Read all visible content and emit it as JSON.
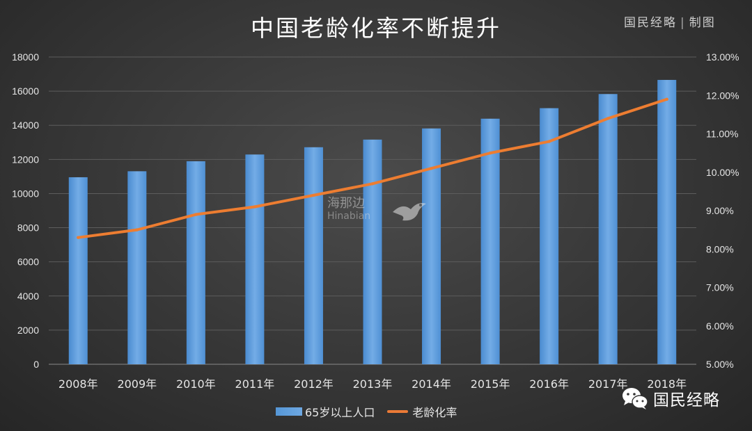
{
  "header": {
    "title": "中国老龄化率不断提升",
    "credit_name": "国民经略",
    "credit_sep": "|",
    "credit_suffix": "制图"
  },
  "watermark": {
    "cn": "海那边",
    "en": "Hinabian"
  },
  "brand": {
    "label": "国民经略",
    "icon": "wechat-icon"
  },
  "colors": {
    "bar": "#5b9bd5",
    "line": "#ed7d31",
    "background": "#3a3a3a",
    "text": "#e6e6e6"
  },
  "chart_data": {
    "type": "bar",
    "title": "中国老龄化率不断提升",
    "categories": [
      "2008年",
      "2009年",
      "2010年",
      "2011年",
      "2012年",
      "2013年",
      "2014年",
      "2015年",
      "2016年",
      "2017年",
      "2018年"
    ],
    "series": [
      {
        "name": "65岁以上人口",
        "type": "bar",
        "axis": "left",
        "values": [
          10956,
          11307,
          11894,
          12288,
          12714,
          13161,
          13815,
          14386,
          15003,
          15831,
          16658
        ]
      },
      {
        "name": "老龄化率",
        "type": "line",
        "axis": "right",
        "values": [
          8.3,
          8.5,
          8.9,
          9.1,
          9.4,
          9.7,
          10.1,
          10.5,
          10.8,
          11.4,
          11.9
        ]
      }
    ],
    "ylim": [
      0,
      18000
    ],
    "yticks": [
      "0",
      "2000",
      "4000",
      "6000",
      "8000",
      "10000",
      "12000",
      "14000",
      "16000",
      "18000"
    ],
    "y2lim": [
      5.0,
      13.0
    ],
    "y2ticks": [
      "5.00%",
      "6.00%",
      "7.00%",
      "8.00%",
      "9.00%",
      "10.00%",
      "11.00%",
      "12.00%",
      "13.00%"
    ],
    "grid": true,
    "legend_position": "bottom"
  }
}
